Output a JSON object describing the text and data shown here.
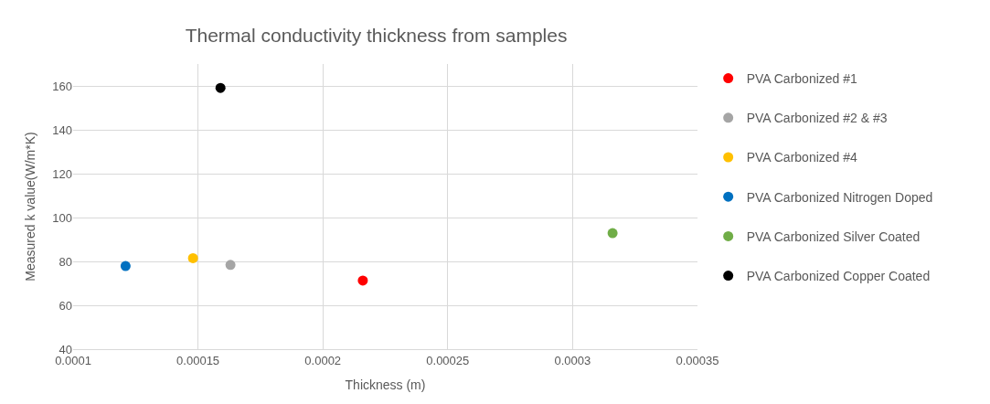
{
  "chart_data": {
    "type": "scatter",
    "title": "Thermal conductivity thickness from samples",
    "xlabel": "Thickness (m)",
    "ylabel": "Measured k value(W/m*K)",
    "xlim": [
      0.0001,
      0.00035
    ],
    "xticks": [
      0.0001,
      0.00015,
      0.0002,
      0.00025,
      0.0003,
      0.00035
    ],
    "ylim": [
      40,
      170
    ],
    "yticks": [
      40,
      60,
      80,
      100,
      120,
      140,
      160
    ],
    "grid": true,
    "legend": "right",
    "marker": "circle",
    "series": [
      {
        "name": "PVA Carbonized #1",
        "color": "#ff0000",
        "x": [
          0.000216
        ],
        "values": [
          71.3
        ]
      },
      {
        "name": "PVA Carbonized #2 & #3",
        "color": "#a5a5a5",
        "x": [
          0.000163
        ],
        "values": [
          78.4
        ]
      },
      {
        "name": "PVA Carbonized #4",
        "color": "#ffc000",
        "x": [
          0.000148
        ],
        "values": [
          81.5
        ]
      },
      {
        "name": "PVA Carbonized Nitrogen Doped",
        "color": "#0070c0",
        "x": [
          0.000121
        ],
        "values": [
          77.9
        ]
      },
      {
        "name": "PVA Carbonized Silver Coated",
        "color": "#70ad47",
        "x": [
          0.000316
        ],
        "values": [
          92.9
        ]
      },
      {
        "name": "PVA Carbonized Copper Coated",
        "color": "#000000",
        "x": [
          0.000159
        ],
        "values": [
          159.1
        ]
      }
    ]
  }
}
